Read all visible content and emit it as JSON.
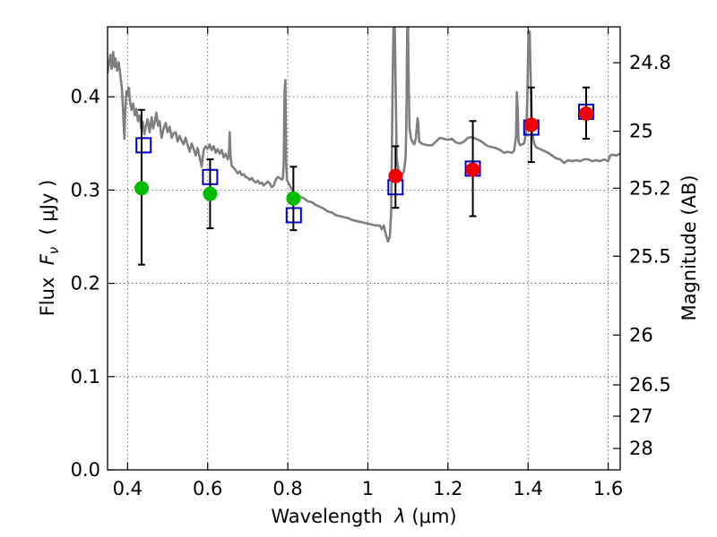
{
  "chart_data": {
    "type": "scatter",
    "xlabel": {
      "prefix": "Wavelength  ",
      "symbol": "λ",
      "suffix": " (μm)"
    },
    "ylabel": {
      "prefix": "Flux  ",
      "symbol": "F",
      "subscript": "ν",
      "suffix": "  ( μJy )"
    },
    "y2label": "Magnitude (AB)",
    "xlim": [
      0.35,
      1.63
    ],
    "ylim": [
      0.0,
      0.475
    ],
    "x_ticks": [
      {
        "value": 0.4,
        "label": "0.4"
      },
      {
        "value": 0.6,
        "label": "0.6"
      },
      {
        "value": 0.8,
        "label": "0.8"
      },
      {
        "value": 1.0,
        "label": "1"
      },
      {
        "value": 1.2,
        "label": "1.2"
      },
      {
        "value": 1.4,
        "label": "1.4"
      },
      {
        "value": 1.6,
        "label": "1.6"
      }
    ],
    "y_ticks": [
      {
        "value": 0.0,
        "label": "0.0"
      },
      {
        "value": 0.1,
        "label": "0.1"
      },
      {
        "value": 0.2,
        "label": "0.2"
      },
      {
        "value": 0.3,
        "label": "0.3"
      },
      {
        "value": 0.4,
        "label": "0.4"
      }
    ],
    "mag_ticks": [
      {
        "value": 24.8,
        "label": "24.8"
      },
      {
        "value": 25.0,
        "label": "25"
      },
      {
        "value": 25.2,
        "label": "25.2"
      },
      {
        "value": 25.5,
        "label": "25.5"
      },
      {
        "value": 26.0,
        "label": "26"
      },
      {
        "value": 26.5,
        "label": "26.5"
      },
      {
        "value": 27.0,
        "label": "27"
      },
      {
        "value": 28.0,
        "label": "28"
      }
    ],
    "grid": true,
    "model_spectrum": {
      "color": "#7f7f7f",
      "points": [
        [
          0.35,
          0.425
        ],
        [
          0.354,
          0.438
        ],
        [
          0.357,
          0.445
        ],
        [
          0.36,
          0.43
        ],
        [
          0.364,
          0.448
        ],
        [
          0.367,
          0.432
        ],
        [
          0.37,
          0.441
        ],
        [
          0.374,
          0.428
        ],
        [
          0.378,
          0.437
        ],
        [
          0.382,
          0.423
        ],
        [
          0.386,
          0.408
        ],
        [
          0.388,
          0.392
        ],
        [
          0.39,
          0.372
        ],
        [
          0.392,
          0.355
        ],
        [
          0.394,
          0.384
        ],
        [
          0.397,
          0.406
        ],
        [
          0.4,
          0.401
        ],
        [
          0.403,
          0.41
        ],
        [
          0.406,
          0.395
        ],
        [
          0.41,
          0.386
        ],
        [
          0.414,
          0.393
        ],
        [
          0.418,
          0.38
        ],
        [
          0.422,
          0.387
        ],
        [
          0.426,
          0.374
        ],
        [
          0.43,
          0.38
        ],
        [
          0.434,
          0.366
        ],
        [
          0.438,
          0.373
        ],
        [
          0.442,
          0.36
        ],
        [
          0.446,
          0.369
        ],
        [
          0.45,
          0.376
        ],
        [
          0.455,
          0.362
        ],
        [
          0.46,
          0.378
        ],
        [
          0.464,
          0.366
        ],
        [
          0.468,
          0.373
        ],
        [
          0.472,
          0.383
        ],
        [
          0.476,
          0.369
        ],
        [
          0.48,
          0.374
        ],
        [
          0.485,
          0.356
        ],
        [
          0.49,
          0.366
        ],
        [
          0.495,
          0.372
        ],
        [
          0.5,
          0.362
        ],
        [
          0.505,
          0.368
        ],
        [
          0.51,
          0.356
        ],
        [
          0.515,
          0.361
        ],
        [
          0.52,
          0.362
        ],
        [
          0.525,
          0.352
        ],
        [
          0.53,
          0.358
        ],
        [
          0.535,
          0.353
        ],
        [
          0.54,
          0.349
        ],
        [
          0.545,
          0.356
        ],
        [
          0.55,
          0.348
        ],
        [
          0.555,
          0.341
        ],
        [
          0.56,
          0.35
        ],
        [
          0.565,
          0.344
        ],
        [
          0.57,
          0.337
        ],
        [
          0.575,
          0.345
        ],
        [
          0.58,
          0.335
        ],
        [
          0.585,
          0.325
        ],
        [
          0.59,
          0.343
        ],
        [
          0.595,
          0.347
        ],
        [
          0.6,
          0.344
        ],
        [
          0.605,
          0.349
        ],
        [
          0.61,
          0.343
        ],
        [
          0.615,
          0.347
        ],
        [
          0.62,
          0.34
        ],
        [
          0.625,
          0.344
        ],
        [
          0.63,
          0.339
        ],
        [
          0.635,
          0.343
        ],
        [
          0.64,
          0.335
        ],
        [
          0.645,
          0.339
        ],
        [
          0.65,
          0.333
        ],
        [
          0.653,
          0.337
        ],
        [
          0.655,
          0.362
        ],
        [
          0.657,
          0.337
        ],
        [
          0.66,
          0.326
        ],
        [
          0.665,
          0.324
        ],
        [
          0.67,
          0.321
        ],
        [
          0.675,
          0.318
        ],
        [
          0.68,
          0.32
        ],
        [
          0.685,
          0.316
        ],
        [
          0.69,
          0.317
        ],
        [
          0.695,
          0.314
        ],
        [
          0.7,
          0.313
        ],
        [
          0.705,
          0.311
        ],
        [
          0.71,
          0.313
        ],
        [
          0.715,
          0.31
        ],
        [
          0.72,
          0.308
        ],
        [
          0.725,
          0.31
        ],
        [
          0.73,
          0.307
        ],
        [
          0.735,
          0.308
        ],
        [
          0.74,
          0.305
        ],
        [
          0.745,
          0.307
        ],
        [
          0.75,
          0.309
        ],
        [
          0.755,
          0.307
        ],
        [
          0.76,
          0.303
        ],
        [
          0.765,
          0.305
        ],
        [
          0.77,
          0.311
        ],
        [
          0.775,
          0.314
        ],
        [
          0.78,
          0.313
        ],
        [
          0.785,
          0.311
        ],
        [
          0.788,
          0.313
        ],
        [
          0.79,
          0.33
        ],
        [
          0.792,
          0.406
        ],
        [
          0.794,
          0.418
        ],
        [
          0.796,
          0.33
        ],
        [
          0.798,
          0.311
        ],
        [
          0.8,
          0.309
        ],
        [
          0.805,
          0.305
        ],
        [
          0.81,
          0.301
        ],
        [
          0.815,
          0.298
        ],
        [
          0.82,
          0.296
        ],
        [
          0.83,
          0.293
        ],
        [
          0.84,
          0.291
        ],
        [
          0.85,
          0.288
        ],
        [
          0.86,
          0.287
        ],
        [
          0.87,
          0.284
        ],
        [
          0.88,
          0.282
        ],
        [
          0.89,
          0.28
        ],
        [
          0.9,
          0.277
        ],
        [
          0.91,
          0.276
        ],
        [
          0.92,
          0.273
        ],
        [
          0.93,
          0.272
        ],
        [
          0.94,
          0.271
        ],
        [
          0.95,
          0.27
        ],
        [
          0.96,
          0.268
        ],
        [
          0.97,
          0.267
        ],
        [
          0.98,
          0.266
        ],
        [
          0.99,
          0.265
        ],
        [
          1.0,
          0.264
        ],
        [
          1.01,
          0.263
        ],
        [
          1.02,
          0.262
        ],
        [
          1.03,
          0.262
        ],
        [
          1.035,
          0.258
        ],
        [
          1.04,
          0.262
        ],
        [
          1.045,
          0.252
        ],
        [
          1.05,
          0.245
        ],
        [
          1.055,
          0.25
        ],
        [
          1.058,
          0.275
        ],
        [
          1.06,
          0.345
        ],
        [
          1.062,
          0.42
        ],
        [
          1.064,
          0.48
        ],
        [
          1.067,
          0.48
        ],
        [
          1.069,
          0.42
        ],
        [
          1.072,
          0.335
        ],
        [
          1.076,
          0.322
        ],
        [
          1.08,
          0.317
        ],
        [
          1.085,
          0.316
        ],
        [
          1.09,
          0.32
        ],
        [
          1.094,
          0.334
        ],
        [
          1.096,
          0.37
        ],
        [
          1.098,
          0.47
        ],
        [
          1.1,
          0.48
        ],
        [
          1.102,
          0.41
        ],
        [
          1.104,
          0.366
        ],
        [
          1.108,
          0.355
        ],
        [
          1.112,
          0.351
        ],
        [
          1.116,
          0.349
        ],
        [
          1.12,
          0.356
        ],
        [
          1.124,
          0.377
        ],
        [
          1.126,
          0.37
        ],
        [
          1.128,
          0.352
        ],
        [
          1.134,
          0.35
        ],
        [
          1.14,
          0.349
        ],
        [
          1.15,
          0.348
        ],
        [
          1.16,
          0.348
        ],
        [
          1.17,
          0.352
        ],
        [
          1.18,
          0.356
        ],
        [
          1.19,
          0.355
        ],
        [
          1.2,
          0.354
        ],
        [
          1.21,
          0.355
        ],
        [
          1.22,
          0.351
        ],
        [
          1.23,
          0.35
        ],
        [
          1.24,
          0.352
        ],
        [
          1.25,
          0.356
        ],
        [
          1.26,
          0.357
        ],
        [
          1.27,
          0.355
        ],
        [
          1.28,
          0.353
        ],
        [
          1.29,
          0.35
        ],
        [
          1.3,
          0.347
        ],
        [
          1.31,
          0.346
        ],
        [
          1.32,
          0.345
        ],
        [
          1.33,
          0.343
        ],
        [
          1.34,
          0.34
        ],
        [
          1.35,
          0.341
        ],
        [
          1.36,
          0.34
        ],
        [
          1.365,
          0.342
        ],
        [
          1.37,
          0.358
        ],
        [
          1.372,
          0.405
        ],
        [
          1.374,
          0.388
        ],
        [
          1.376,
          0.352
        ],
        [
          1.38,
          0.348
        ],
        [
          1.39,
          0.35
        ],
        [
          1.395,
          0.362
        ],
        [
          1.398,
          0.395
        ],
        [
          1.401,
          0.47
        ],
        [
          1.404,
          0.47
        ],
        [
          1.407,
          0.41
        ],
        [
          1.41,
          0.362
        ],
        [
          1.415,
          0.35
        ],
        [
          1.42,
          0.346
        ],
        [
          1.43,
          0.344
        ],
        [
          1.44,
          0.342
        ],
        [
          1.45,
          0.34
        ],
        [
          1.46,
          0.337
        ],
        [
          1.47,
          0.334
        ],
        [
          1.48,
          0.333
        ],
        [
          1.49,
          0.329
        ],
        [
          1.5,
          0.332
        ],
        [
          1.51,
          0.331
        ],
        [
          1.52,
          0.332
        ],
        [
          1.53,
          0.331
        ],
        [
          1.54,
          0.333
        ],
        [
          1.55,
          0.333
        ],
        [
          1.56,
          0.331
        ],
        [
          1.57,
          0.332
        ],
        [
          1.58,
          0.331
        ],
        [
          1.59,
          0.333
        ],
        [
          1.6,
          0.331
        ],
        [
          1.605,
          0.337
        ],
        [
          1.61,
          0.338
        ],
        [
          1.62,
          0.337
        ],
        [
          1.63,
          0.339
        ]
      ]
    },
    "model_points": {
      "marker": "open-square",
      "color": "#0000cc",
      "points": [
        [
          0.44,
          0.348
        ],
        [
          0.606,
          0.314
        ],
        [
          0.815,
          0.273
        ],
        [
          1.069,
          0.303
        ],
        [
          1.262,
          0.323
        ],
        [
          1.408,
          0.367
        ],
        [
          1.545,
          0.384
        ]
      ]
    },
    "observed_optical": {
      "marker": "filled-circle",
      "color": "#00bb00",
      "points": [
        {
          "x": 0.435,
          "y": 0.302,
          "yerr_low": 0.22,
          "yerr_high": 0.386
        },
        {
          "x": 0.606,
          "y": 0.296,
          "yerr_low": 0.259,
          "yerr_high": 0.333
        },
        {
          "x": 0.814,
          "y": 0.291,
          "yerr_low": 0.257,
          "yerr_high": 0.325
        }
      ]
    },
    "observed_ir": {
      "marker": "filled-circle",
      "color": "#ee0000",
      "points": [
        {
          "x": 1.069,
          "y": 0.315,
          "yerr_low": 0.281,
          "yerr_high": 0.347
        },
        {
          "x": 1.262,
          "y": 0.322,
          "yerr_low": 0.272,
          "yerr_high": 0.374
        },
        {
          "x": 1.408,
          "y": 0.37,
          "yerr_low": 0.33,
          "yerr_high": 0.41
        },
        {
          "x": 1.545,
          "y": 0.382,
          "yerr_low": 0.355,
          "yerr_high": 0.41
        }
      ]
    }
  }
}
